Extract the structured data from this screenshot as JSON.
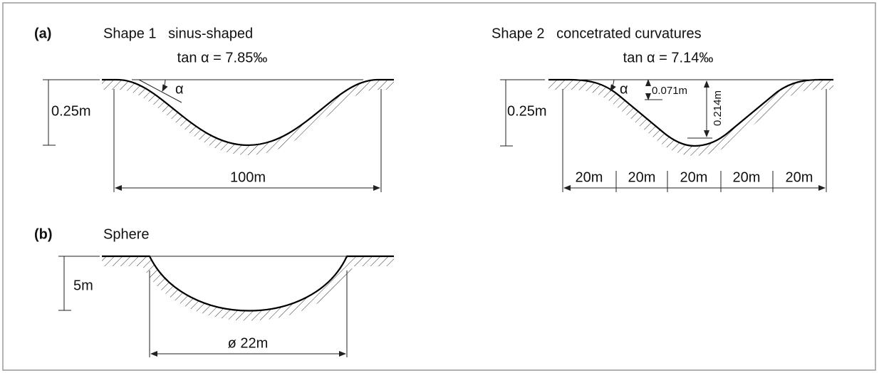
{
  "panel_a": {
    "label": "(a)",
    "shape1": {
      "title": "Shape 1   sinus-shaped",
      "slope": "tan α = 7.85‰",
      "angle": "α",
      "depth": "0.25m",
      "width": "100m"
    },
    "shape2": {
      "title": "Shape 2   concetrated curvatures",
      "slope": "tan α = 7.14‰",
      "angle": "α",
      "depth": "0.25m",
      "upper_depth": "0.071m",
      "lower_depth": "0.214m",
      "segments": [
        "20m",
        "20m",
        "20m",
        "20m",
        "20m"
      ]
    }
  },
  "panel_b": {
    "label": "(b)",
    "title": "Sphere",
    "depth": "5m",
    "diameter": "ø 22m"
  }
}
